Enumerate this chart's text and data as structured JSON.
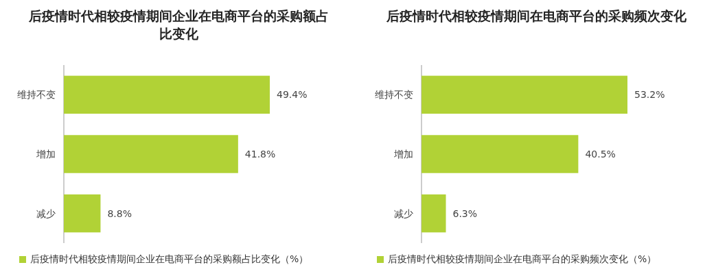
{
  "chart_data": [
    {
      "type": "bar",
      "orientation": "horizontal",
      "title": "后疫情时代相较疫情期间企业在电商平台的采购额占比变化",
      "categories": [
        "维持不变",
        "增加",
        "减少"
      ],
      "legend": "bottom",
      "series": [
        {
          "name": "后疫情时代相较疫情期间企业在电商平台的采购额占比变化（%）",
          "color": "#b1d236",
          "values": [
            49.4,
            41.8,
            8.8
          ],
          "value_labels": [
            "49.4%",
            "41.8%",
            "8.8%"
          ]
        }
      ]
    },
    {
      "type": "bar",
      "orientation": "horizontal",
      "title": "后疫情时代相较疫情期间在电商平台的采购频次变化",
      "categories": [
        "维持不变",
        "增加",
        "减少"
      ],
      "legend": "bottom",
      "series": [
        {
          "name": "后疫情时代相较疫情期间企业在电商平台的采购频次变化（%）",
          "color": "#b1d236",
          "values": [
            53.2,
            40.5,
            6.3
          ],
          "value_labels": [
            "53.2%",
            "40.5%",
            "6.3%"
          ]
        }
      ]
    }
  ]
}
